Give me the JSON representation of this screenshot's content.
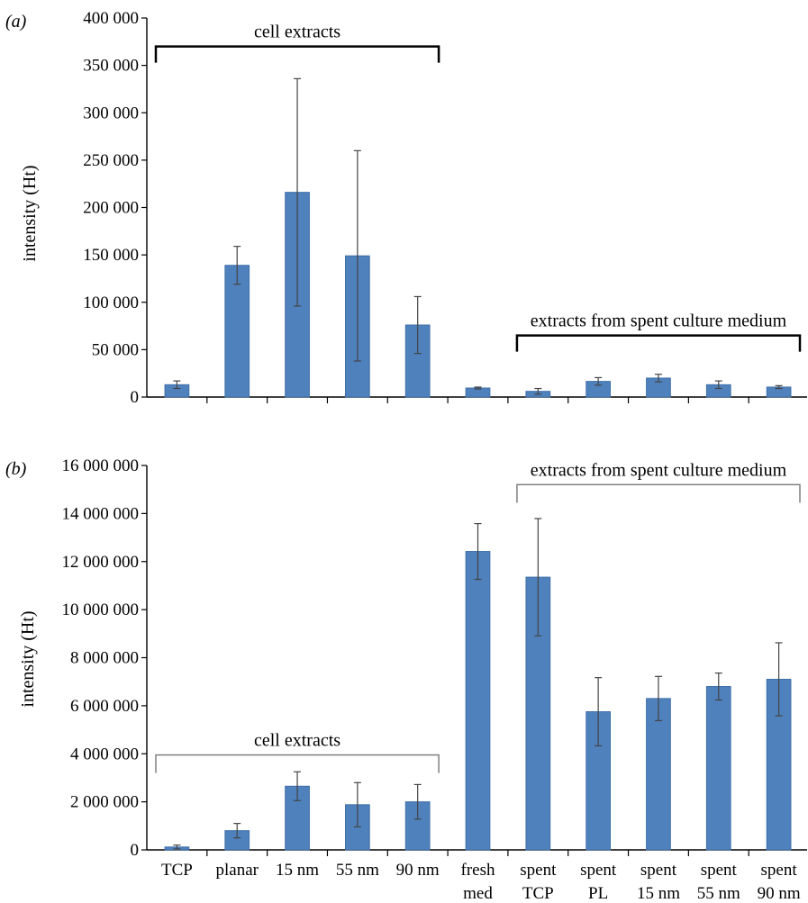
{
  "chart_data": [
    {
      "panel": "(a)",
      "type": "bar",
      "ylabel": "intensity (Ht)",
      "ylim": [
        0,
        400000
      ],
      "yticks": [
        0,
        50000,
        100000,
        150000,
        200000,
        250000,
        300000,
        350000,
        400000
      ],
      "ytick_labels": [
        "0",
        "50 000",
        "100 000",
        "150 000",
        "200 000",
        "250 000",
        "300 000",
        "350 000",
        "400 000"
      ],
      "categories": [
        "TCP",
        "planar",
        "15 nm",
        "55 nm",
        "90 nm",
        "fresh med",
        "spent TCP",
        "spent PL",
        "spent 15 nm",
        "spent 55 nm",
        "spent 90 nm"
      ],
      "values": [
        13000,
        139000,
        216000,
        149000,
        76000,
        9500,
        6000,
        16500,
        20000,
        13000,
        10500
      ],
      "errors": [
        4000,
        20000,
        120000,
        111000,
        30000,
        1000,
        3000,
        4000,
        4000,
        4000,
        1500
      ],
      "annotations": [
        {
          "text": "cell extracts",
          "from_category": 0,
          "to_category": 4,
          "level": 370000
        },
        {
          "text": "extracts from spent culture medium",
          "from_category": 6,
          "to_category": 10,
          "level": 65000
        }
      ]
    },
    {
      "panel": "(b)",
      "type": "bar",
      "ylabel": "intensity (Ht)",
      "ylim": [
        0,
        16000000
      ],
      "yticks": [
        0,
        2000000,
        4000000,
        6000000,
        8000000,
        10000000,
        12000000,
        14000000,
        16000000
      ],
      "ytick_labels": [
        "0",
        "2 000 000",
        "4 000 000",
        "6 000 000",
        "8 000 000",
        "10 000 000",
        "12 000 000",
        "14 000 000",
        "16 000 000"
      ],
      "categories": [
        "TCP",
        "planar",
        "15 nm",
        "55 nm",
        "90 nm",
        "fresh med",
        "spent TCP",
        "spent PL",
        "spent 15 nm",
        "spent 55 nm",
        "spent 90 nm"
      ],
      "values": [
        120000,
        800000,
        2650000,
        1880000,
        2000000,
        12420000,
        11350000,
        5750000,
        6300000,
        6800000,
        7100000
      ],
      "errors": [
        80000,
        300000,
        600000,
        920000,
        720000,
        1160000,
        2440000,
        1420000,
        920000,
        560000,
        1520000
      ],
      "annotations": [
        {
          "text": "cell extracts",
          "from_category": 0,
          "to_category": 4,
          "level": 3950000
        },
        {
          "text": "extracts from spent culture medium",
          "from_category": 6,
          "to_category": 10,
          "level": 15200000
        }
      ]
    }
  ],
  "category_label_lines": [
    [
      "TCP"
    ],
    [
      "planar"
    ],
    [
      "15 nm"
    ],
    [
      "55 nm"
    ],
    [
      "90 nm"
    ],
    [
      "fresh",
      "med"
    ],
    [
      "spent",
      "TCP"
    ],
    [
      "spent",
      "PL"
    ],
    [
      "spent",
      "15 nm"
    ],
    [
      "spent",
      "55 nm"
    ],
    [
      "spent",
      "90 nm"
    ]
  ],
  "colors": {
    "bar": "#4f81bd",
    "bar_stroke": "#3f6fa8",
    "error_bar": "#444444",
    "bracket_a": "#000000",
    "bracket_b": "#777777"
  }
}
